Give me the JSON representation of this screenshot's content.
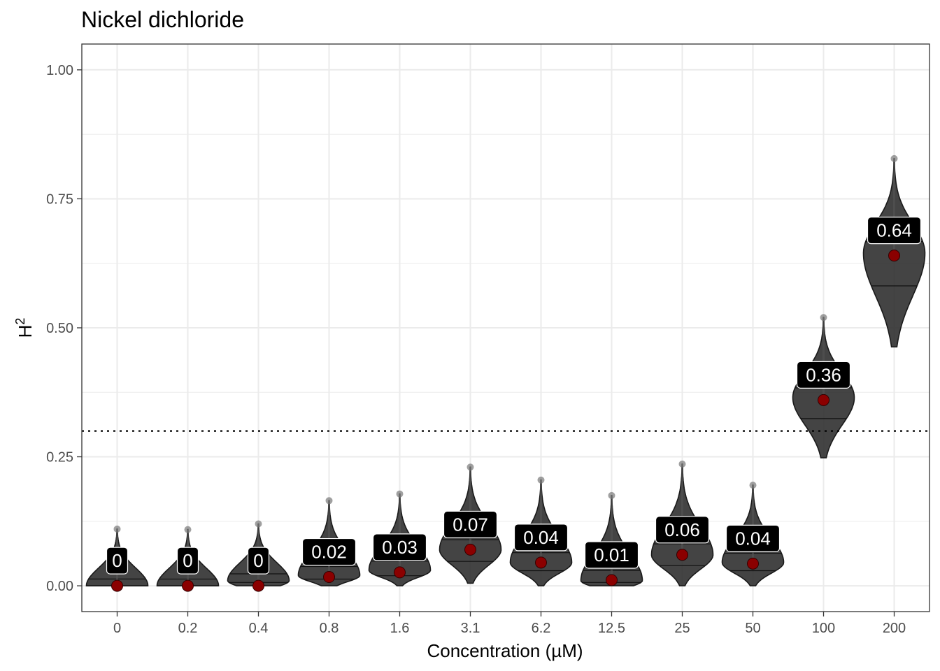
{
  "chart_data": {
    "type": "violin",
    "title": "Nickel dichloride",
    "xlabel": "Concentration (µM)",
    "ylabel_main": "H",
    "ylabel_sup": "2",
    "ylim": [
      -0.05,
      1.05
    ],
    "yticks": [
      0.0,
      0.25,
      0.5,
      0.75,
      1.0
    ],
    "ytick_labels": [
      "0.00",
      "0.25",
      "0.50",
      "0.75",
      "1.00"
    ],
    "threshold": 0.3,
    "categories": [
      "0",
      "0.2",
      "0.4",
      "0.8",
      "1.6",
      "3.1",
      "6.2",
      "12.5",
      "25",
      "50",
      "100",
      "200"
    ],
    "means": [
      0.0,
      0.0,
      0.0,
      0.017,
      0.026,
      0.07,
      0.045,
      0.011,
      0.06,
      0.043,
      0.36,
      0.64
    ],
    "labels": [
      "0",
      "0",
      "0",
      "0.02",
      "0.03",
      "0.07",
      "0.04",
      "0.01",
      "0.06",
      "0.04",
      "0.36",
      "0.64"
    ],
    "mins": [
      0.0,
      0.0,
      0.0,
      0.0,
      0.0,
      0.005,
      0.0,
      0.0,
      0.0,
      0.0,
      0.248,
      0.463
    ],
    "maxs": [
      0.11,
      0.109,
      0.12,
      0.165,
      0.178,
      0.23,
      0.205,
      0.175,
      0.236,
      0.195,
      0.52,
      0.828
    ],
    "modes": [
      0.0,
      0.0,
      0.01,
      0.02,
      0.03,
      0.07,
      0.045,
      0.01,
      0.06,
      0.045,
      0.365,
      0.645
    ],
    "colors": {
      "mean_point": "#8b0000",
      "violin_fill": "#2a2a2a",
      "label_bg": "#000000",
      "grid": "#ebebeb"
    }
  }
}
